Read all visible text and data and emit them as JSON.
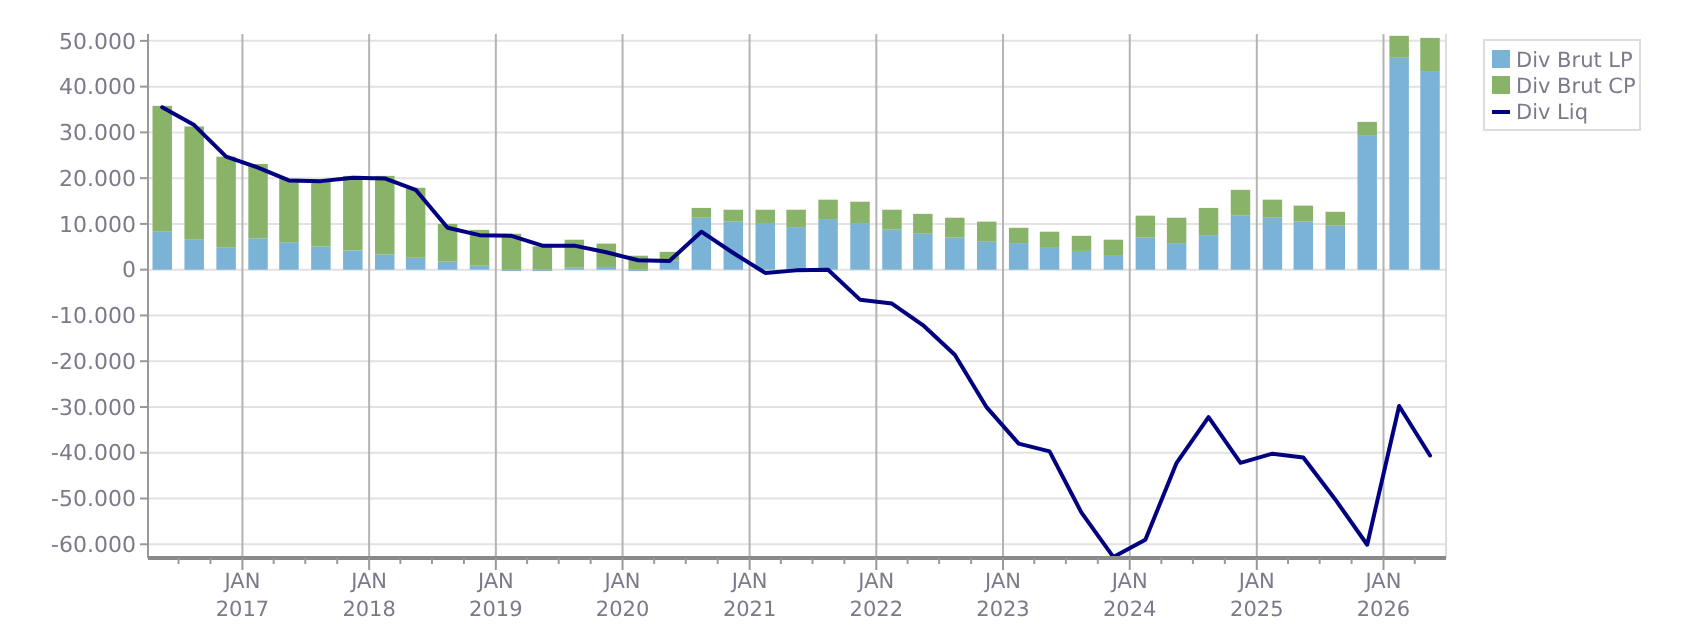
{
  "chart_data": {
    "type": "bar",
    "stacked": true,
    "grid": true,
    "legend": "top right",
    "x": [
      "2016-05-15",
      "2016-08-15",
      "2016-11-15",
      "2017-02-15",
      "2017-05-15",
      "2017-08-15",
      "2017-11-15",
      "2018-02-15",
      "2018-05-15",
      "2018-08-15",
      "2018-11-15",
      "2019-02-15",
      "2019-05-15",
      "2019-08-15",
      "2019-11-15",
      "2020-02-15",
      "2020-05-15",
      "2020-08-15",
      "2020-11-15",
      "2021-02-15",
      "2021-05-15",
      "2021-08-15",
      "2021-11-15",
      "2022-02-15",
      "2022-05-15",
      "2022-08-15",
      "2022-11-15",
      "2023-02-15",
      "2023-05-15",
      "2023-08-15",
      "2023-11-15",
      "2024-02-15",
      "2024-05-15",
      "2024-08-15",
      "2024-11-15",
      "2025-02-15",
      "2025-05-15",
      "2025-08-15",
      "2025-11-15",
      "2026-02-15",
      "2026-05-15"
    ],
    "xlim": [
      "2016-04-04",
      "2026-06-30"
    ],
    "xticks": [
      {
        "value": "2016-07-01",
        "label": null
      },
      {
        "value": "2016-10-01",
        "label": null
      },
      {
        "value": "2017-01-01",
        "label": "JAN\n2017"
      },
      {
        "value": "2017-04-01",
        "label": null
      },
      {
        "value": "2017-07-01",
        "label": null
      },
      {
        "value": "2017-10-01",
        "label": null
      },
      {
        "value": "2018-01-01",
        "label": "JAN\n2018"
      },
      {
        "value": "2018-04-01",
        "label": null
      },
      {
        "value": "2018-07-01",
        "label": null
      },
      {
        "value": "2018-10-01",
        "label": null
      },
      {
        "value": "2019-01-01",
        "label": "JAN\n2019"
      },
      {
        "value": "2019-04-01",
        "label": null
      },
      {
        "value": "2019-07-01",
        "label": null
      },
      {
        "value": "2019-10-01",
        "label": null
      },
      {
        "value": "2020-01-01",
        "label": "JAN\n2020"
      },
      {
        "value": "2020-04-01",
        "label": null
      },
      {
        "value": "2020-07-01",
        "label": null
      },
      {
        "value": "2020-10-01",
        "label": null
      },
      {
        "value": "2021-01-01",
        "label": "JAN\n2021"
      },
      {
        "value": "2021-04-01",
        "label": null
      },
      {
        "value": "2021-07-01",
        "label": null
      },
      {
        "value": "2021-10-01",
        "label": null
      },
      {
        "value": "2022-01-01",
        "label": "JAN\n2022"
      },
      {
        "value": "2022-04-01",
        "label": null
      },
      {
        "value": "2022-07-01",
        "label": null
      },
      {
        "value": "2022-10-01",
        "label": null
      },
      {
        "value": "2023-01-01",
        "label": "JAN\n2023"
      },
      {
        "value": "2023-04-01",
        "label": null
      },
      {
        "value": "2023-07-01",
        "label": null
      },
      {
        "value": "2023-10-01",
        "label": null
      },
      {
        "value": "2024-01-01",
        "label": "JAN\n2024"
      },
      {
        "value": "2024-04-01",
        "label": null
      },
      {
        "value": "2024-07-01",
        "label": null
      },
      {
        "value": "2024-10-01",
        "label": null
      },
      {
        "value": "2025-01-01",
        "label": "JAN\n2025"
      },
      {
        "value": "2025-04-01",
        "label": null
      },
      {
        "value": "2025-07-01",
        "label": null
      },
      {
        "value": "2025-10-01",
        "label": null
      },
      {
        "value": "2026-01-01",
        "label": "JAN\n2026"
      },
      {
        "value": "2026-04-01",
        "label": null
      }
    ],
    "ylim": [
      -63000,
      51500
    ],
    "yticks": [
      {
        "value": -60000,
        "label": "-60.000"
      },
      {
        "value": -50000,
        "label": "-50.000"
      },
      {
        "value": -40000,
        "label": "-40.000"
      },
      {
        "value": -30000,
        "label": "-30.000"
      },
      {
        "value": -20000,
        "label": "-20.000"
      },
      {
        "value": -10000,
        "label": "-10.000"
      },
      0,
      {
        "value": 10000,
        "label": "10.000"
      },
      {
        "value": 20000,
        "label": "20.000"
      },
      {
        "value": 30000,
        "label": "30.000"
      },
      {
        "value": 40000,
        "label": "40.000"
      },
      {
        "value": 50000,
        "label": "50.000"
      }
    ],
    "series": [
      {
        "name": "Div Brut LP",
        "color": "#7ab3d6",
        "values": [
          8300,
          6550,
          4800,
          6850,
          6000,
          5100,
          4200,
          3350,
          2600,
          1750,
          870,
          -300,
          -300,
          450,
          600,
          -300,
          2000,
          11350,
          10500,
          10200,
          9300,
          11050,
          10200,
          8750,
          7850,
          7000,
          6100,
          5800,
          4950,
          4100,
          3200,
          7000,
          5800,
          7550,
          11800,
          11350,
          10500,
          9600,
          29400,
          46300,
          43400
        ]
      },
      {
        "name": "Div Brut CP",
        "color": "#8ab36a",
        "values": [
          27500,
          24750,
          19900,
          16250,
          13900,
          14550,
          16300,
          17150,
          15300,
          8250,
          7830,
          7850,
          5100,
          6100,
          5100,
          3050,
          1900,
          2150,
          2600,
          2900,
          3800,
          4250,
          4650,
          4350,
          4350,
          4350,
          4400,
          3350,
          3350,
          3300,
          3350,
          4800,
          5550,
          5950,
          5650,
          3950,
          3500,
          3050,
          2900,
          4800,
          7250
        ]
      },
      {
        "name": "Div Liq",
        "type": "line",
        "color": "#000080",
        "values": [
          35500,
          31600,
          24700,
          22300,
          19500,
          19350,
          20100,
          19950,
          17450,
          9150,
          7550,
          7400,
          5250,
          5250,
          3800,
          2050,
          1900,
          8300,
          3650,
          -700,
          -150,
          0,
          -6550,
          -7400,
          -12100,
          -18600,
          -30100,
          -38000,
          -39700,
          -53100,
          -62800,
          -59000,
          -42200,
          -32200,
          -42200,
          -40200,
          -41050,
          -50200,
          -60100,
          -29800,
          -40600
        ]
      }
    ]
  }
}
